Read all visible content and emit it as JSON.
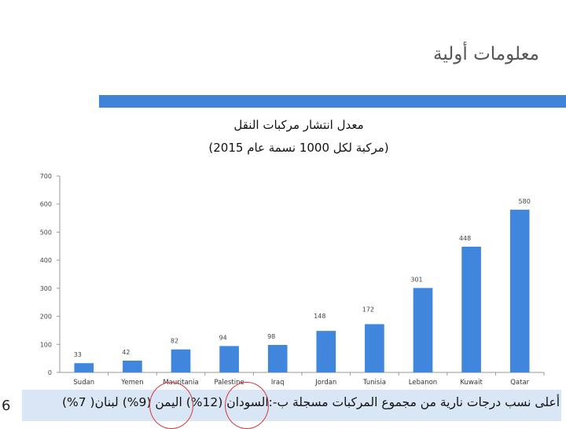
{
  "slide": {
    "title": "معلومات أولية",
    "page_number": "6",
    "footer_text": "أعلى نسب درجات نارية من مجموع المركبات مسجلة ب-:السودان (12%) اليمن (9%) لبنان( 7%)"
  },
  "colors": {
    "bar": "#3f86dc",
    "accent_bar": "#3f82d8",
    "highlight": "#d63a3a"
  },
  "chart_data": {
    "type": "bar",
    "title": "معدل انتشار مركبات النقل",
    "subtitle": "(مركبة لكل 1000 نسمة عام 2015)",
    "categories": [
      "Sudan",
      "Yemen",
      "Mauritania",
      "Palestine",
      "Iraq",
      "Jordan",
      "Tunisia",
      "Lebanon",
      "Kuwait",
      "Qatar"
    ],
    "values": [
      33,
      42,
      82,
      94,
      98,
      148,
      172,
      301,
      448,
      580
    ],
    "ylim": [
      0,
      700
    ],
    "yticks": [
      0,
      100,
      200,
      300,
      400,
      500,
      600,
      700
    ],
    "data_labels": true,
    "grid": false
  }
}
